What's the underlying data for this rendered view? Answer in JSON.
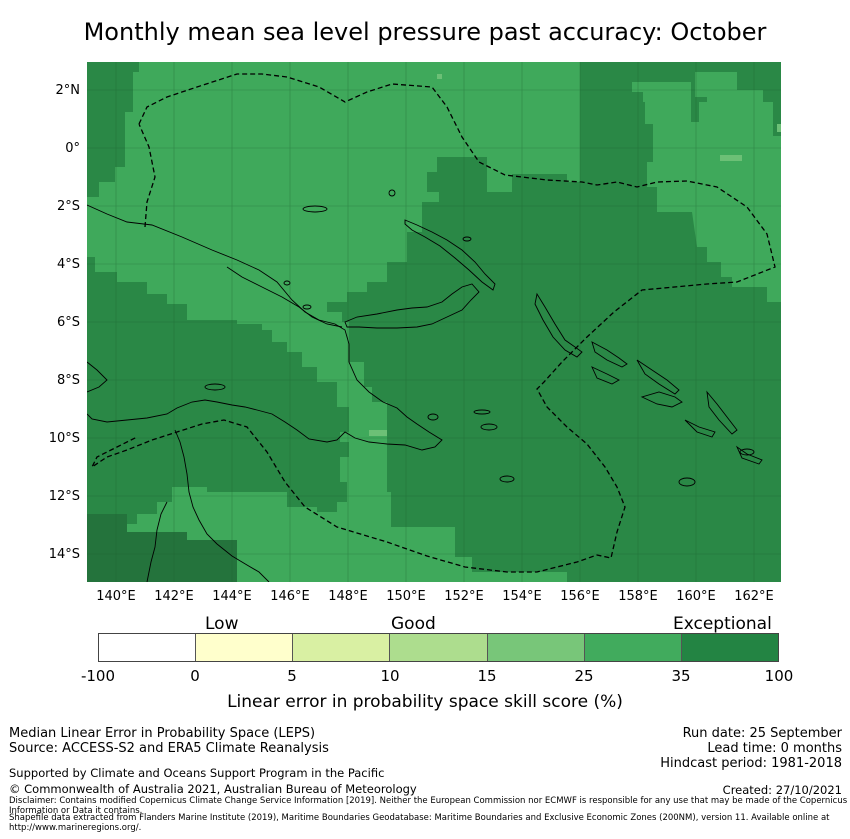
{
  "title": "Monthly mean sea level pressure past accuracy: October",
  "map": {
    "y_labels": [
      "2°N",
      "0°",
      "2°S",
      "4°S",
      "6°S",
      "8°S",
      "10°S",
      "12°S",
      "14°S"
    ],
    "x_labels": [
      "140°E",
      "142°E",
      "144°E",
      "146°E",
      "148°E",
      "150°E",
      "152°E",
      "154°E",
      "156°E",
      "158°E",
      "160°E",
      "162°E"
    ],
    "colors": {
      "very_dark": "#24733c",
      "dark": "#2a8846",
      "medium": "#3fa95b",
      "light_patch": "#6cc076"
    }
  },
  "colorbar": {
    "title": "Linear error in probability space skill score (%)",
    "ticks": [
      "-100",
      "0",
      "5",
      "10",
      "15",
      "25",
      "35",
      "100"
    ],
    "categories": [
      "Low",
      "Good",
      "Exceptional"
    ],
    "colors": [
      "#ffffff",
      "#ffffcc",
      "#d9f0a3",
      "#addd8e",
      "#78c679",
      "#41ab5d",
      "#238443"
    ]
  },
  "footer": {
    "line1": "Median Linear Error in Probability Space (LEPS)",
    "line2": "Source: ACCESS-S2 and ERA5 Climate Reanalysis",
    "support": "Supported by Climate and Oceans Support Program in the Pacific",
    "copyright": "© Commonwealth of Australia 2021, Australian Bureau of Meteorology",
    "disclaimer1": "Disclaimer: Contains modified Copernicus Climate Change Service Information [2019]. Neither the European Commission nor ECMWF is responsible for any use that may be made of the Copernicus Information or Data it contains.",
    "disclaimer2": "Shapefile data extracted from Flanders Marine Institute (2019), Maritime Boundaries Geodatabase: Maritime Boundaries and Exclusive Economic Zones (200NM), version 11. Available online at http://www.marineregions.org/.",
    "run_date": "Run date: 25 September",
    "lead_time": "Lead time: 0 months",
    "hindcast": "Hindcast period: 1981-2018",
    "created": "Created: 27/10/2021"
  }
}
